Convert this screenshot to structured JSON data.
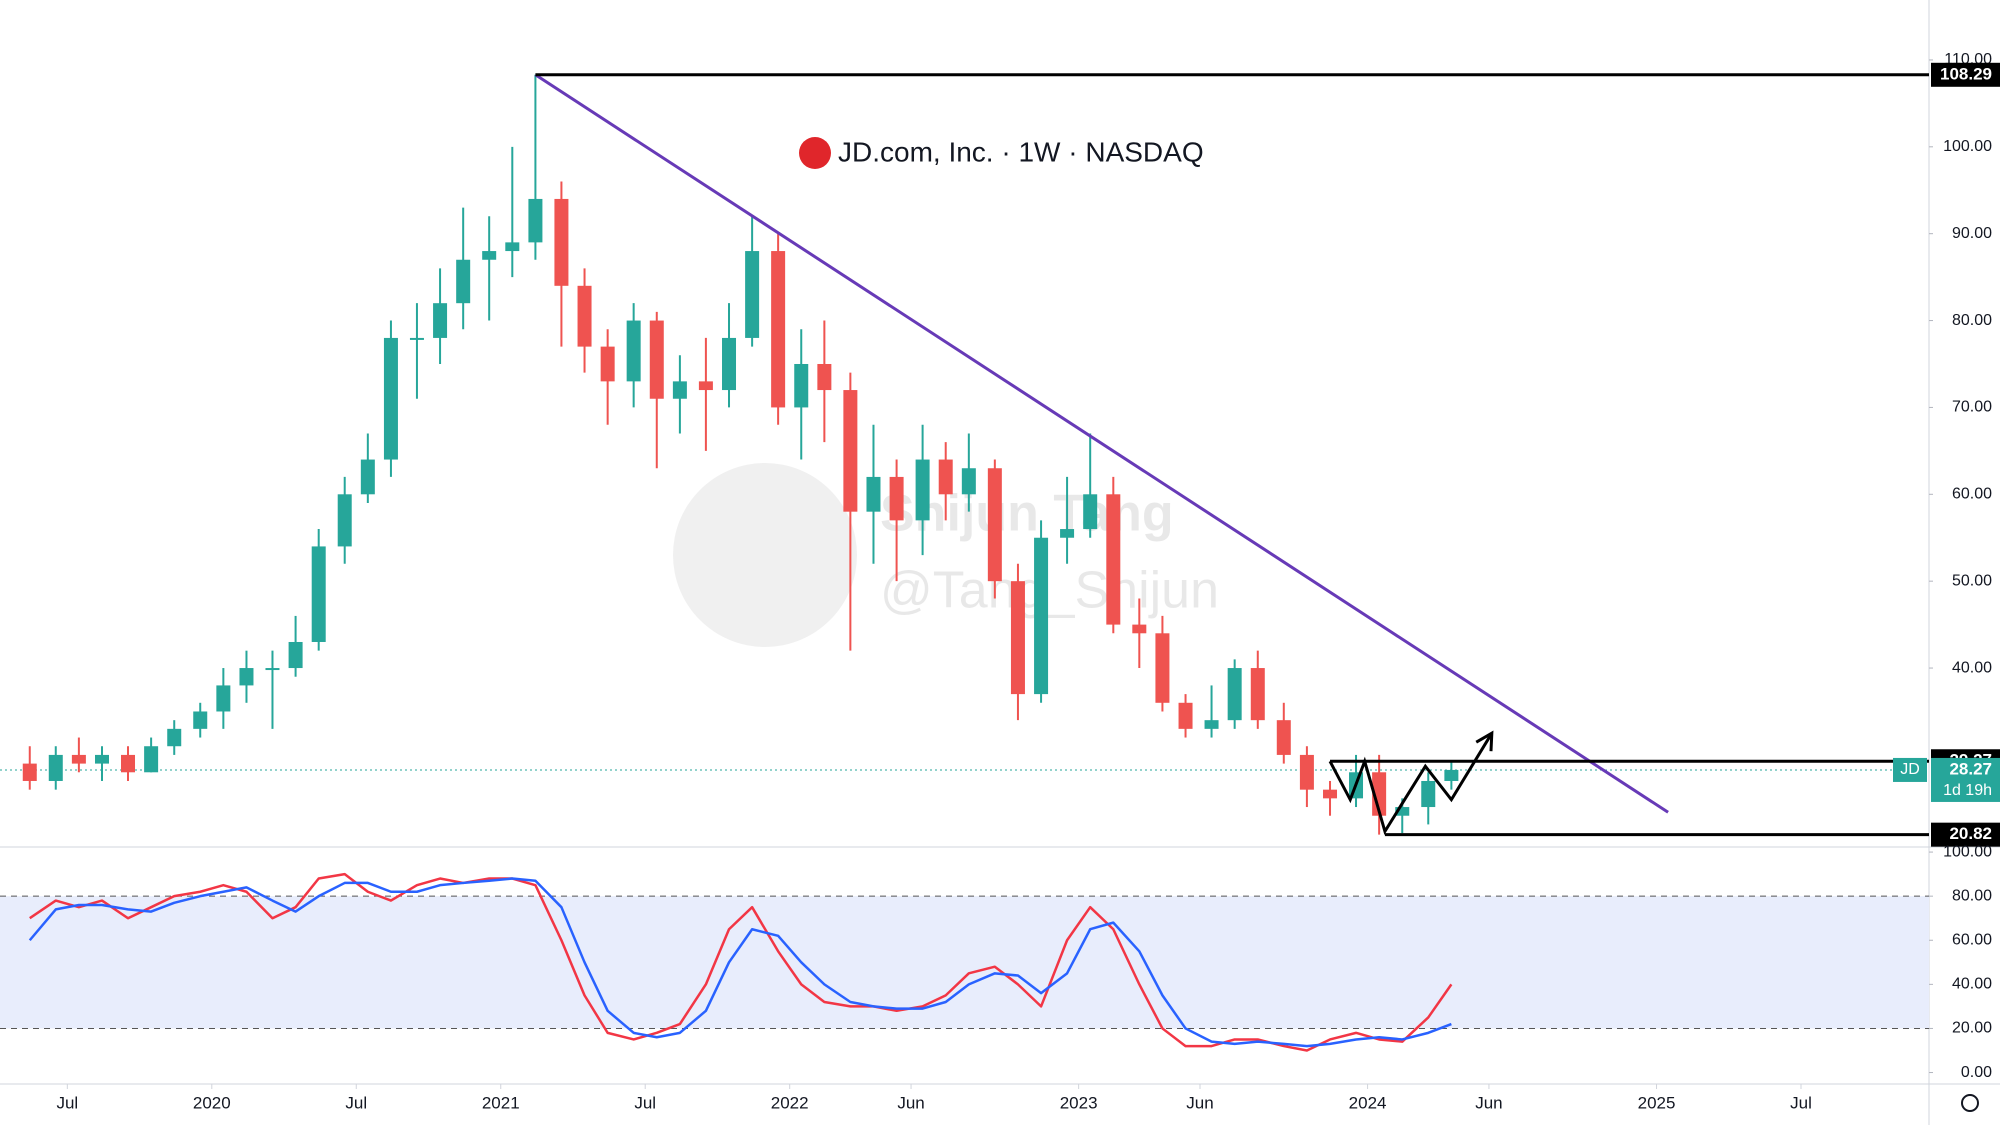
{
  "chart_data": [
    {
      "type": "candlestick",
      "title": "JD.com, Inc. · 1W · NASDAQ",
      "watermark": [
        "Shijun Tang",
        "@Tang_Shijun"
      ],
      "symbol": "JD",
      "last_price": 28.27,
      "countdown": "1d 19h",
      "up_color": "#26a69a",
      "down_color": "#ef5350",
      "x": [
        2019.37,
        2019.46,
        2019.54,
        2019.62,
        2019.71,
        2019.79,
        2019.87,
        2019.96,
        2020.04,
        2020.12,
        2020.21,
        2020.29,
        2020.37,
        2020.46,
        2020.54,
        2020.62,
        2020.71,
        2020.79,
        2020.87,
        2020.96,
        2021.04,
        2021.12,
        2021.21,
        2021.29,
        2021.37,
        2021.46,
        2021.54,
        2021.62,
        2021.71,
        2021.79,
        2021.87,
        2021.96,
        2022.04,
        2022.12,
        2022.21,
        2022.29,
        2022.37,
        2022.46,
        2022.54,
        2022.62,
        2022.71,
        2022.79,
        2022.87,
        2022.96,
        2023.04,
        2023.12,
        2023.21,
        2023.29,
        2023.37,
        2023.46,
        2023.54,
        2023.62,
        2023.71,
        2023.79,
        2023.87,
        2023.96,
        2024.04,
        2024.12,
        2024.21,
        2024.29
      ],
      "open": [
        29,
        27,
        30,
        29,
        30,
        28,
        31,
        33,
        35,
        38,
        40,
        40,
        43,
        54,
        60,
        64,
        78,
        78,
        82,
        87,
        88,
        89,
        94,
        84,
        77,
        73,
        80,
        71,
        73,
        72,
        78,
        88,
        70,
        75,
        72,
        58,
        62,
        57,
        64,
        60,
        63,
        50,
        37,
        55,
        56,
        60,
        45,
        44,
        36,
        33,
        34,
        40,
        34,
        30,
        26,
        25,
        28,
        23,
        24,
        27
      ],
      "high": [
        31,
        31,
        32,
        31,
        31,
        32,
        34,
        36,
        40,
        42,
        42,
        46,
        56,
        62,
        67,
        80,
        82,
        86,
        93,
        92,
        100,
        108.29,
        96,
        86,
        79,
        82,
        81,
        76,
        78,
        82,
        92,
        90,
        79,
        80,
        74,
        68,
        64,
        68,
        66,
        67,
        64,
        52,
        57,
        62,
        67,
        62,
        48,
        46,
        37,
        38,
        41,
        42,
        36,
        31,
        27,
        30,
        30,
        25,
        28,
        29.27
      ],
      "low": [
        26,
        26,
        28,
        27,
        27,
        28,
        30,
        32,
        33,
        36,
        33,
        39,
        42,
        52,
        59,
        62,
        71,
        75,
        79,
        80,
        85,
        87,
        77,
        74,
        68,
        70,
        63,
        67,
        65,
        70,
        77,
        68,
        64,
        66,
        42,
        52,
        50,
        53,
        57,
        58,
        48,
        34,
        36,
        52,
        55,
        44,
        40,
        35,
        32,
        32,
        33,
        33,
        29,
        24,
        23,
        24,
        20.82,
        21,
        22,
        26
      ],
      "close": [
        27,
        30,
        29,
        30,
        28,
        31,
        33,
        35,
        38,
        40,
        40,
        43,
        54,
        60,
        64,
        78,
        78,
        82,
        87,
        88,
        89,
        94,
        84,
        77,
        73,
        80,
        71,
        73,
        72,
        78,
        88,
        70,
        75,
        72,
        58,
        62,
        57,
        64,
        60,
        63,
        50,
        37,
        55,
        56,
        60,
        45,
        44,
        36,
        33,
        34,
        40,
        34,
        30,
        26,
        25,
        28,
        23,
        24,
        27,
        28.27
      ],
      "xlim": [
        2019.267,
        2025.943
      ],
      "xticks": [
        {
          "value": 2019.5,
          "label": "Jul"
        },
        2020,
        {
          "value": 2020.5,
          "label": "Jul"
        },
        2021,
        {
          "value": 2021.5,
          "label": "Jul"
        },
        2022,
        {
          "value": 2022.42,
          "label": "Jun"
        },
        2023,
        {
          "value": 2023.42,
          "label": "Jun"
        },
        2024,
        {
          "value": 2024.42,
          "label": "Jun"
        },
        2025,
        {
          "value": 2025.5,
          "label": "Jul"
        }
      ],
      "ylim": [
        19.4,
        116.9
      ],
      "yticks": [
        {
          "value": 40,
          "label": "40.00"
        },
        {
          "value": 50,
          "label": "50.00"
        },
        {
          "value": 60,
          "label": "60.00"
        },
        {
          "value": 70,
          "label": "70.00"
        },
        {
          "value": 80,
          "label": "80.00"
        },
        {
          "value": 90,
          "label": "90.00"
        },
        {
          "value": 100,
          "label": "100.00"
        },
        {
          "value": 110,
          "label": "110.00"
        }
      ],
      "grid": false,
      "levels": [
        108.29,
        29.27,
        20.82
      ],
      "level_starts": [
        2021.12,
        2023.87,
        2024.06
      ],
      "trendline": {
        "x": [
          2021.12,
          2025.04
        ],
        "y": [
          108.29,
          23.4
        ],
        "color": "#673ab7"
      },
      "pattern": {
        "x": [
          2023.87,
          2023.94,
          2023.99,
          2024.06,
          2024.2,
          2024.29,
          2024.43
        ],
        "y": [
          29.26,
          24.85,
          29.26,
          21.2,
          28.7,
          24.85,
          32.5
        ]
      }
    },
    {
      "type": "line",
      "x": [
        2019.37,
        2019.46,
        2019.54,
        2019.62,
        2019.71,
        2019.79,
        2019.87,
        2019.96,
        2020.04,
        2020.12,
        2020.21,
        2020.29,
        2020.37,
        2020.46,
        2020.54,
        2020.62,
        2020.71,
        2020.79,
        2020.87,
        2020.96,
        2021.04,
        2021.12,
        2021.21,
        2021.29,
        2021.37,
        2021.46,
        2021.54,
        2021.62,
        2021.71,
        2021.79,
        2021.87,
        2021.96,
        2022.04,
        2022.12,
        2022.21,
        2022.29,
        2022.37,
        2022.46,
        2022.54,
        2022.62,
        2022.71,
        2022.79,
        2022.87,
        2022.96,
        2023.04,
        2023.12,
        2023.21,
        2023.29,
        2023.37,
        2023.46,
        2023.54,
        2023.62,
        2023.71,
        2023.79,
        2023.87,
        2023.96,
        2024.04,
        2024.12,
        2024.21,
        2024.29
      ],
      "series": [
        {
          "color": "#f23645",
          "values": [
            70,
            78,
            75,
            78,
            70,
            75,
            80,
            82,
            85,
            82,
            70,
            75,
            88,
            90,
            82,
            78,
            85,
            88,
            86,
            88,
            88,
            85,
            60,
            35,
            18,
            15,
            18,
            22,
            40,
            65,
            75,
            55,
            40,
            32,
            30,
            30,
            28,
            30,
            35,
            45,
            48,
            40,
            30,
            60,
            75,
            65,
            40,
            20,
            12,
            12,
            15,
            15,
            12,
            10,
            15,
            18,
            15,
            14,
            25,
            40
          ]
        },
        {
          "color": "#2962ff",
          "values": [
            60,
            74,
            76,
            76,
            74,
            73,
            77,
            80,
            82,
            84,
            78,
            73,
            80,
            86,
            86,
            82,
            82,
            85,
            86,
            87,
            88,
            87,
            75,
            50,
            28,
            18,
            16,
            18,
            28,
            50,
            65,
            62,
            50,
            40,
            32,
            30,
            29,
            29,
            32,
            40,
            45,
            44,
            36,
            45,
            65,
            68,
            55,
            35,
            20,
            14,
            13,
            14,
            13,
            12,
            13,
            15,
            16,
            15,
            18,
            22
          ]
        }
      ],
      "bands": [
        20,
        80
      ],
      "ylim": [
        -5.2,
        102.3
      ],
      "yticks": [
        {
          "value": 0,
          "label": "0.00"
        },
        {
          "value": 20,
          "label": "20.00"
        },
        {
          "value": 40,
          "label": "40.00"
        },
        {
          "value": 60,
          "label": "60.00"
        },
        {
          "value": 80,
          "label": "80.00"
        },
        {
          "value": 100,
          "label": "100.00"
        }
      ]
    }
  ]
}
